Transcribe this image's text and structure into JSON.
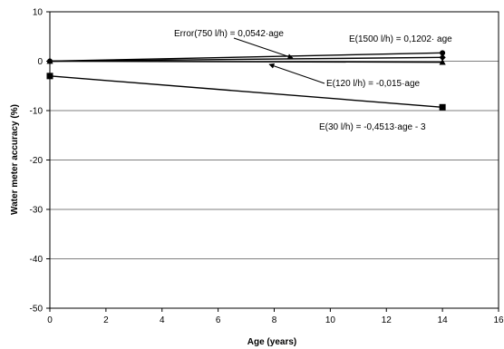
{
  "chart_data": {
    "type": "line",
    "xlabel": "Age (years)",
    "ylabel": "Water meter accuracy (%)",
    "xlim": [
      0,
      16
    ],
    "ylim": [
      -50,
      10
    ],
    "x_ticks": [
      "0",
      "2",
      "4",
      "6",
      "8",
      "10",
      "12",
      "14",
      "16"
    ],
    "y_ticks": [
      "10",
      "0",
      "-10",
      "-20",
      "-30",
      "-40",
      "-50"
    ],
    "grid": "horizontal",
    "legend": "none",
    "series": [
      {
        "x": [
          0,
          14
        ],
        "y": [
          0,
          1.68
        ],
        "marker": "circle",
        "color": "#000000"
      },
      {
        "x": [
          0,
          14
        ],
        "y": [
          0,
          0.76
        ],
        "marker": "diamond",
        "color": "#000000"
      },
      {
        "x": [
          0,
          14
        ],
        "y": [
          0,
          -0.21
        ],
        "marker": "triangle",
        "color": "#000000"
      },
      {
        "x": [
          0,
          14
        ],
        "y": [
          -3,
          -9.32
        ],
        "marker": "square",
        "color": "#000000"
      }
    ],
    "annotations": [
      "Error(750 l/h) = 0,0542·age",
      "E(1500 l/h) = 0,1202· age",
      "E(120 l/h) = -0,015·age",
      "E(30 l/h) = -0,4513·age - 3"
    ]
  }
}
